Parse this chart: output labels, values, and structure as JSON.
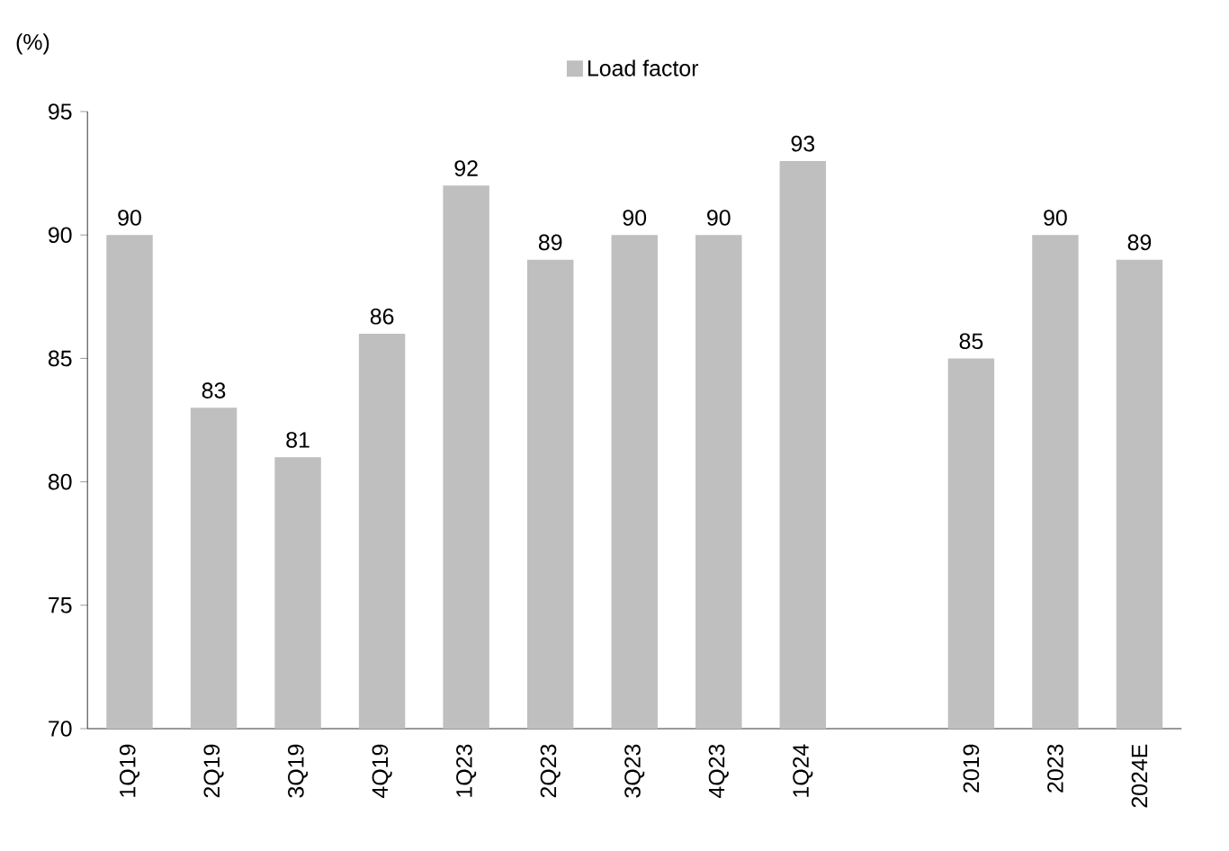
{
  "chart_data": {
    "type": "bar",
    "ylabel": "(%)",
    "categories": [
      "1Q19",
      "2Q19",
      "3Q19",
      "4Q19",
      "1Q23",
      "2Q23",
      "3Q23",
      "4Q23",
      "1Q24",
      null,
      "2019",
      "2023",
      "2024E"
    ],
    "series": [
      {
        "name": "Load factor",
        "color": "#bfbfbf",
        "values": [
          90,
          83,
          81,
          86,
          92,
          89,
          90,
          90,
          93,
          null,
          85,
          90,
          89
        ]
      }
    ],
    "ylim": [
      70,
      95
    ],
    "yticks": [
      70,
      75,
      80,
      85,
      90,
      95
    ],
    "data_labels": true,
    "legend": "top",
    "grid": false
  }
}
